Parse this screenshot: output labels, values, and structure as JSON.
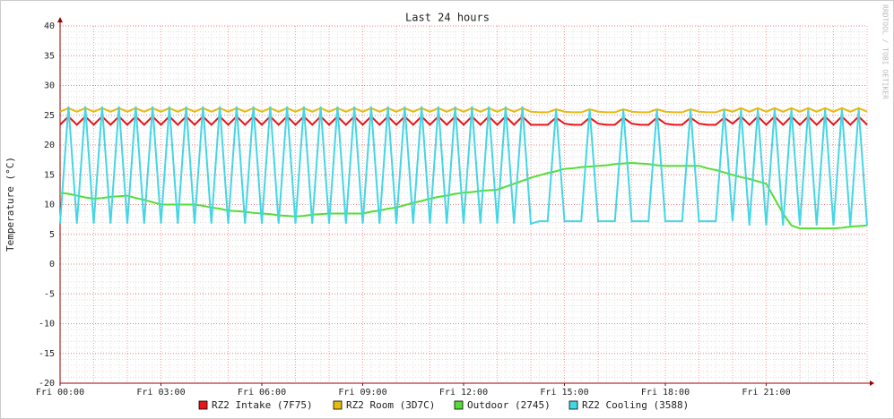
{
  "chart_data": {
    "type": "line",
    "title": "Last 24 hours",
    "y_label": "Temperature (°C)",
    "watermark": "RRDTOOL / TOBI OETIKER",
    "x": [
      0,
      0.25,
      0.5,
      0.75,
      1,
      1.25,
      1.5,
      1.75,
      2,
      2.25,
      2.5,
      2.75,
      3,
      3.25,
      3.5,
      3.75,
      4,
      4.25,
      4.5,
      4.75,
      5,
      5.25,
      5.5,
      5.75,
      6,
      6.25,
      6.5,
      6.75,
      7,
      7.25,
      7.5,
      7.75,
      8,
      8.25,
      8.5,
      8.75,
      9,
      9.25,
      9.5,
      9.75,
      10,
      10.25,
      10.5,
      10.75,
      11,
      11.25,
      11.5,
      11.75,
      12,
      12.25,
      12.5,
      12.75,
      13,
      13.25,
      13.5,
      13.75,
      14,
      14.25,
      14.5,
      14.75,
      15,
      15.25,
      15.5,
      15.75,
      16,
      16.25,
      16.5,
      16.75,
      17,
      17.25,
      17.5,
      17.75,
      18,
      18.25,
      18.5,
      18.75,
      19,
      19.25,
      19.5,
      19.75,
      20,
      20.25,
      20.5,
      20.75,
      21,
      21.25,
      21.5,
      21.75,
      22,
      22.25,
      22.5,
      22.75,
      23,
      23.25,
      23.5,
      23.75,
      24
    ],
    "series": [
      {
        "name": "RZ2 Intake (7F75)",
        "color": "#e8141a",
        "values": [
          23.4,
          24.8,
          23.4,
          24.8,
          23.4,
          24.8,
          23.4,
          24.8,
          23.4,
          24.8,
          23.4,
          24.8,
          23.4,
          24.8,
          23.4,
          24.8,
          23.4,
          24.8,
          23.4,
          24.8,
          23.4,
          24.8,
          23.4,
          24.8,
          23.4,
          24.8,
          23.4,
          24.8,
          23.4,
          24.8,
          23.4,
          24.8,
          23.4,
          24.8,
          23.4,
          24.8,
          23.4,
          24.8,
          23.4,
          24.8,
          23.4,
          24.8,
          23.4,
          24.8,
          23.4,
          24.8,
          23.4,
          24.8,
          23.4,
          24.8,
          23.4,
          24.8,
          23.4,
          24.8,
          23.4,
          24.8,
          23.4,
          23.4,
          23.4,
          24.6,
          23.6,
          23.4,
          23.4,
          24.6,
          23.6,
          23.4,
          23.4,
          24.6,
          23.6,
          23.4,
          23.4,
          24.6,
          23.6,
          23.4,
          23.4,
          24.6,
          23.6,
          23.4,
          23.4,
          24.6,
          23.6,
          24.8,
          23.4,
          24.8,
          23.4,
          24.8,
          23.4,
          24.8,
          23.4,
          24.8,
          23.4,
          24.8,
          23.4,
          24.8,
          23.4,
          24.8,
          23.4
        ]
      },
      {
        "name": "RZ2 Room (3D7C)",
        "color": "#e8b90e",
        "values": [
          25.6,
          26.2,
          25.6,
          26.2,
          25.6,
          26.2,
          25.6,
          26.2,
          25.6,
          26.2,
          25.6,
          26.2,
          25.6,
          26.2,
          25.6,
          26.2,
          25.6,
          26.2,
          25.6,
          26.2,
          25.6,
          26.2,
          25.6,
          26.2,
          25.6,
          26.2,
          25.6,
          26.2,
          25.6,
          26.2,
          25.6,
          26.2,
          25.6,
          26.2,
          25.6,
          26.2,
          25.6,
          26.2,
          25.6,
          26.2,
          25.6,
          26.2,
          25.6,
          26.2,
          25.6,
          26.2,
          25.6,
          26.2,
          25.6,
          26.2,
          25.6,
          26.2,
          25.6,
          26.2,
          25.6,
          26.2,
          25.6,
          25.5,
          25.5,
          26,
          25.6,
          25.5,
          25.5,
          26,
          25.6,
          25.5,
          25.5,
          26,
          25.6,
          25.5,
          25.5,
          26,
          25.6,
          25.5,
          25.5,
          26,
          25.6,
          25.5,
          25.5,
          26,
          25.6,
          26.2,
          25.6,
          26.2,
          25.6,
          26.2,
          25.6,
          26.2,
          25.6,
          26.2,
          25.6,
          26.2,
          25.6,
          26.2,
          25.6,
          26.2,
          25.6
        ]
      },
      {
        "name": "Outdoor (2745)",
        "color": "#55dd33",
        "values": [
          12,
          11.8,
          11.5,
          11.2,
          11,
          11.1,
          11.3,
          11.4,
          11.5,
          11.1,
          10.8,
          10.4,
          10,
          10,
          10,
          10,
          10,
          9.8,
          9.5,
          9.3,
          9,
          8.9,
          8.8,
          8.6,
          8.5,
          8.4,
          8.2,
          8.1,
          8,
          8.1,
          8.3,
          8.4,
          8.5,
          8.5,
          8.5,
          8.5,
          8.5,
          8.8,
          9,
          9.3,
          9.5,
          9.9,
          10.3,
          10.6,
          11,
          11.3,
          11.5,
          11.8,
          12,
          12.1,
          12.3,
          12.4,
          12.5,
          13,
          13.5,
          14,
          14.5,
          14.9,
          15.3,
          15.6,
          16,
          16.1,
          16.3,
          16.4,
          16.5,
          16.6,
          16.8,
          16.9,
          17,
          16.9,
          16.8,
          16.6,
          16.5,
          16.5,
          16.5,
          16.5,
          16.5,
          16.1,
          15.8,
          15.4,
          15,
          14.6,
          14.3,
          13.9,
          13.5,
          11,
          8.5,
          6.5,
          6,
          6,
          6,
          6,
          6,
          6.1,
          6.3,
          6.4,
          6.5
        ]
      },
      {
        "name": "RZ2 Cooling (3588)",
        "color": "#44d6e4",
        "values": [
          6.8,
          26.5,
          6.8,
          26.5,
          6.8,
          26.5,
          6.8,
          26.5,
          6.8,
          26.5,
          6.8,
          26.5,
          6.8,
          26.5,
          6.8,
          26.5,
          6.8,
          26.5,
          6.8,
          26.5,
          6.8,
          26.5,
          6.8,
          26.5,
          6.8,
          26.5,
          6.8,
          26.5,
          6.8,
          26.5,
          6.8,
          26.5,
          6.8,
          26.5,
          6.8,
          26.5,
          6.8,
          26.5,
          6.8,
          26.5,
          6.8,
          26.5,
          6.8,
          26.5,
          6.8,
          26.5,
          6.8,
          26.5,
          6.8,
          26.5,
          6.8,
          26.5,
          6.8,
          26.5,
          6.8,
          26.5,
          6.8,
          7.2,
          7.2,
          26,
          7.2,
          7.2,
          7.2,
          26,
          7.2,
          7.2,
          7.2,
          26,
          7.2,
          7.2,
          7.2,
          26,
          7.2,
          7.2,
          7.2,
          26,
          7.2,
          7.2,
          7.2,
          26,
          7.2,
          26,
          6.5,
          26,
          6.5,
          26,
          6.5,
          26,
          6.5,
          26,
          6.5,
          26,
          6.5,
          26,
          6.5,
          26,
          6.5
        ]
      }
    ],
    "xlim": [
      0,
      24
    ],
    "xticks": [
      {
        "value": 0,
        "label": "Fri 00:00"
      },
      {
        "value": 3,
        "label": "Fri 03:00"
      },
      {
        "value": 6,
        "label": "Fri 06:00"
      },
      {
        "value": 9,
        "label": "Fri 09:00"
      },
      {
        "value": 12,
        "label": "Fri 12:00"
      },
      {
        "value": 15,
        "label": "Fri 15:00"
      },
      {
        "value": 18,
        "label": "Fri 18:00"
      },
      {
        "value": 21,
        "label": "Fri 21:00"
      }
    ],
    "ylim": [
      -20,
      40
    ],
    "yticks": [
      -20,
      -15,
      -10,
      -5,
      0,
      5,
      10,
      15,
      20,
      25,
      30,
      35,
      40
    ],
    "grid": true
  }
}
